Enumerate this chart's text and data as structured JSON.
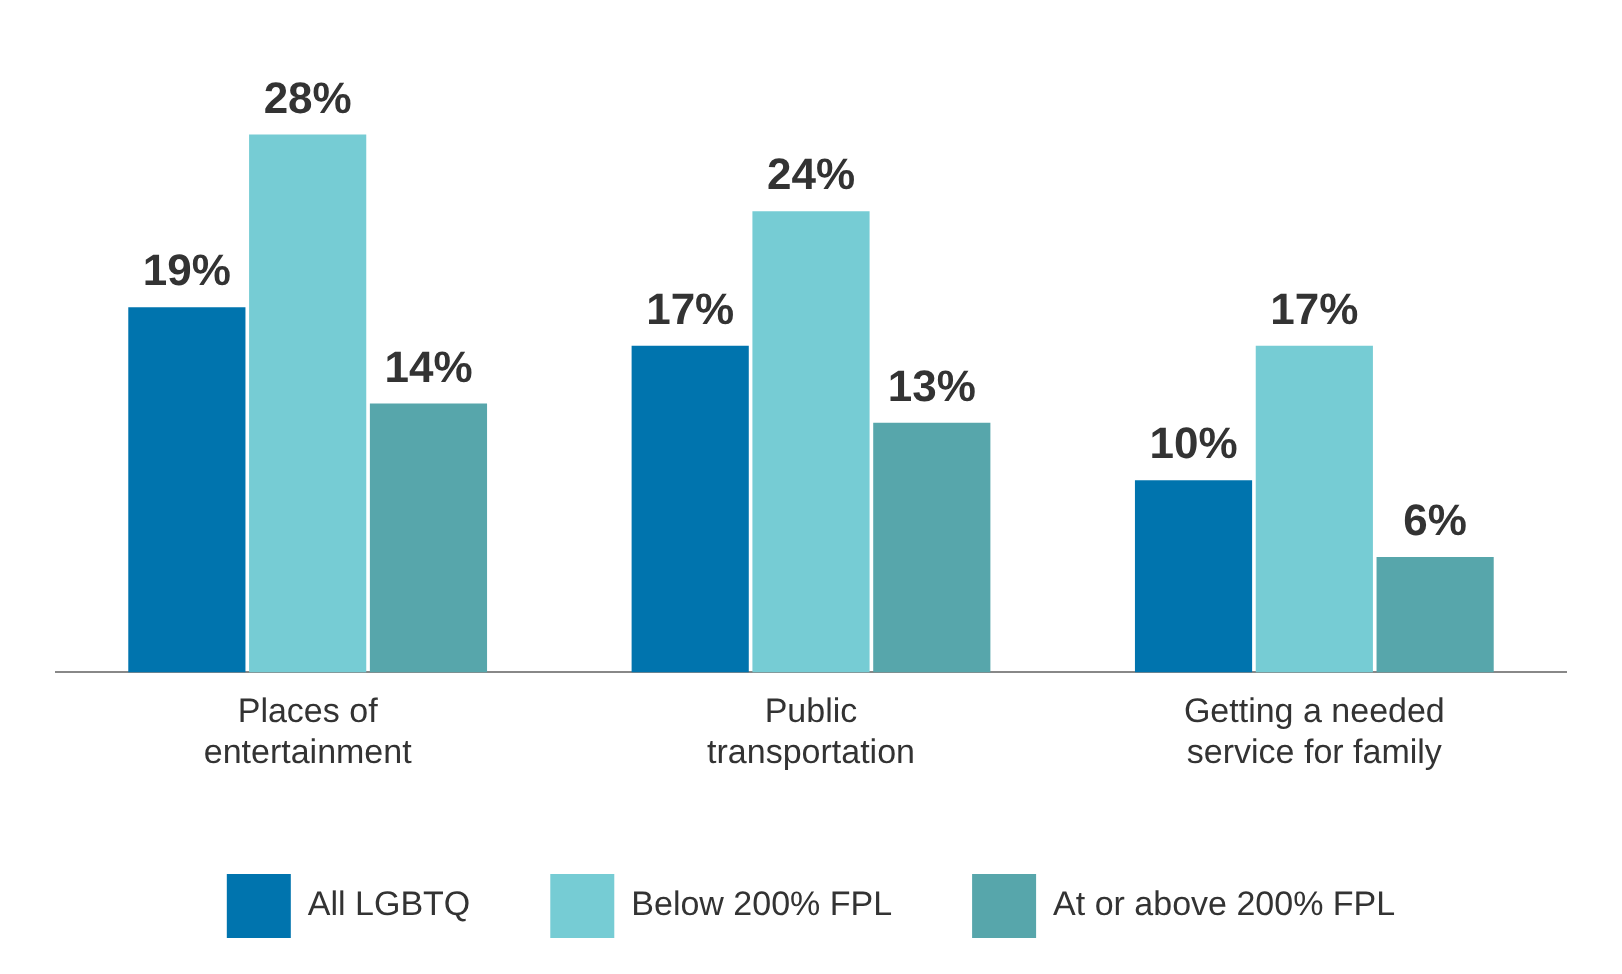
{
  "chart_data": {
    "type": "bar",
    "categories": [
      "Places of entertainment",
      "Public transportation",
      "Getting a needed service for family"
    ],
    "series": [
      {
        "name": "All LGBTQ",
        "color": "#0074ae",
        "values": [
          19,
          17,
          10
        ],
        "value_labels": [
          "19%",
          "17%",
          "10%"
        ]
      },
      {
        "name": "Below 200% FPL",
        "color": "#76ccd4",
        "values": [
          28,
          24,
          17
        ],
        "value_labels": [
          "28%",
          "24%",
          "17%"
        ]
      },
      {
        "name": "At or above 200% FPL",
        "color": "#57a6ab",
        "values": [
          14,
          13,
          6
        ],
        "value_labels": [
          "14%",
          "13%",
          "6%"
        ]
      }
    ],
    "grid": false,
    "legend": "bottom",
    "tick_labels": "x"
  }
}
